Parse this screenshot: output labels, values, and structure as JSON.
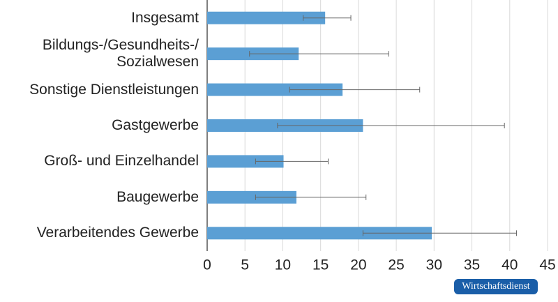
{
  "chart_data": {
    "type": "bar",
    "orientation": "horizontal",
    "categories": [
      "Insgesamt",
      "Bildungs-/Gesundheits-/\nSozialwesen",
      "Sonstige Dienstleistungen",
      "Gastgewerbe",
      "Groß- und Einzelhandel",
      "Baugewerbe",
      "Verarbeitendes Gewerbe"
    ],
    "values": [
      15.6,
      12.1,
      17.9,
      20.6,
      10.1,
      11.8,
      29.7
    ],
    "error_low": [
      12.7,
      5.6,
      10.9,
      9.3,
      6.4,
      6.4,
      20.6
    ],
    "error_high": [
      19.0,
      24.0,
      28.1,
      39.3,
      16.0,
      21.0,
      40.9
    ],
    "color": "#5b9fd4",
    "xlim": [
      0,
      45
    ],
    "xticks": [
      0,
      5,
      10,
      15,
      20,
      25,
      30,
      35,
      40,
      45
    ],
    "grid": true
  },
  "badge": "Wirtschaftsdienst"
}
